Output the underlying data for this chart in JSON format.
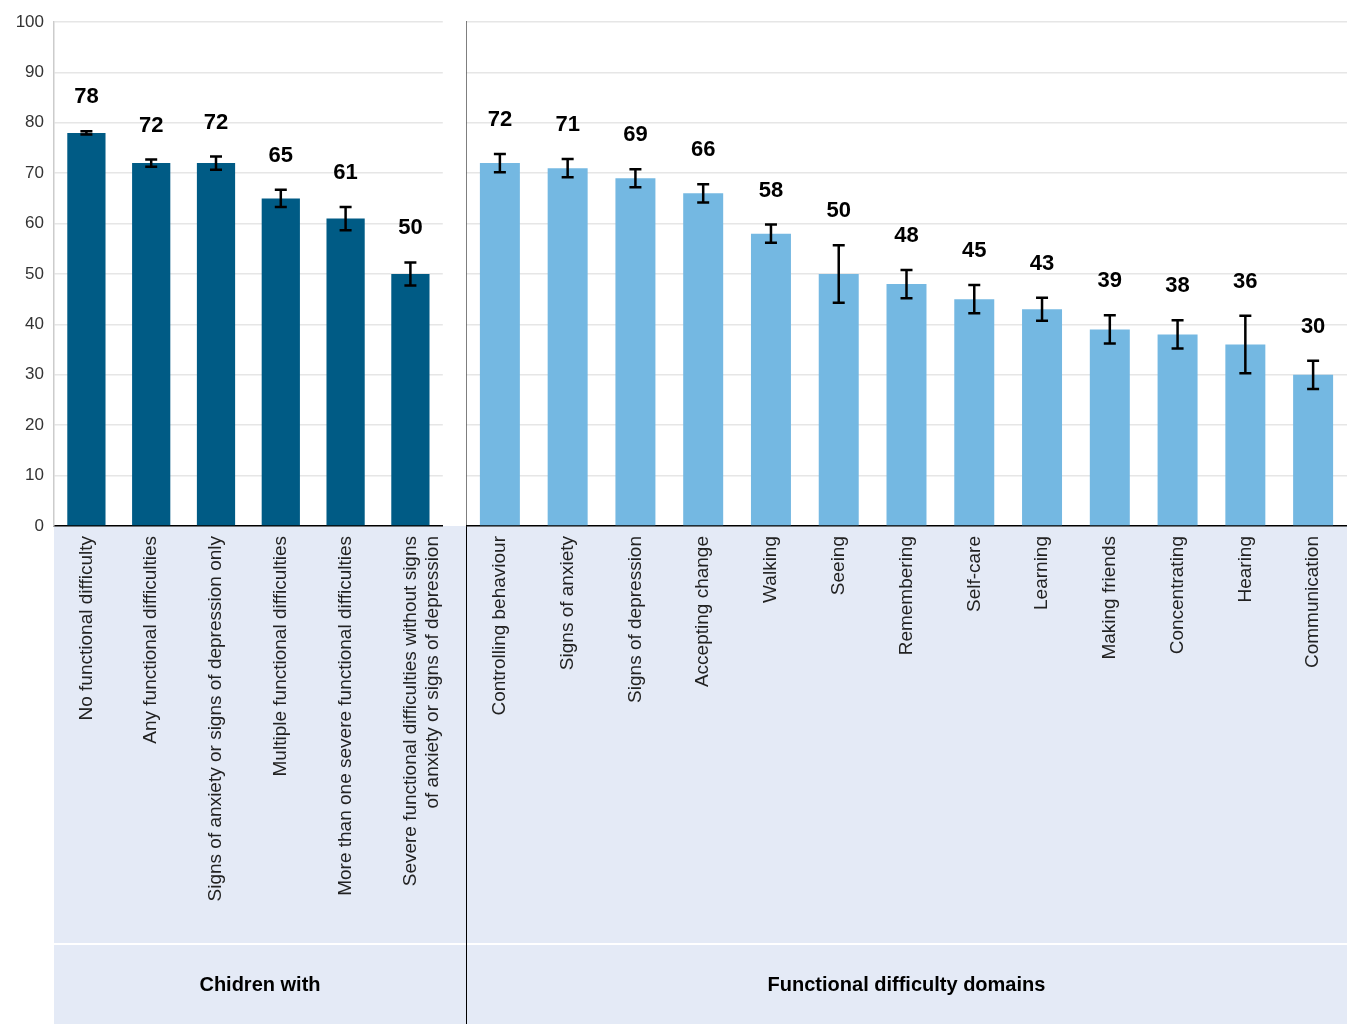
{
  "chart_data": [
    {
      "type": "bar",
      "xlabel": "Chidren with",
      "categories": [
        "No functional difficulty",
        "Any functional difficulties",
        "Signs of anxiety or signs of depression only",
        "Multiple functional difficulties",
        "More than one severe functional difficulties",
        "Severe functional difficulties without signs of anxiety or signs of depression"
      ],
      "values": [
        78,
        72,
        72,
        65,
        61,
        50
      ],
      "errors": [
        0.3,
        0.7,
        1.3,
        1.7,
        2.3,
        2.3
      ],
      "color": "#005b85",
      "data_labels": true,
      "grid": "y",
      "ylim": [
        0,
        100
      ],
      "yticks": [
        0,
        10,
        20,
        30,
        40,
        50,
        60,
        70,
        80,
        90,
        100
      ]
    },
    {
      "type": "bar",
      "xlabel": "Functional difficulty domains",
      "categories": [
        "Controlling behaviour",
        "Signs of anxiety",
        "Signs of depression",
        "Accepting change",
        "Walking",
        "Seeing",
        "Remembering",
        "Self-care",
        "Learning",
        "Making friends",
        "Concentrating",
        "Hearing",
        "Communication"
      ],
      "values": [
        72,
        71,
        69,
        66,
        58,
        50,
        48,
        45,
        43,
        39,
        38,
        36,
        30
      ],
      "errors": [
        1.8,
        1.8,
        1.8,
        1.8,
        1.8,
        5.7,
        2.8,
        2.8,
        2.3,
        2.8,
        2.8,
        5.7,
        2.8
      ],
      "color": "#74b8e2",
      "data_labels": true,
      "grid": "y",
      "ylim": [
        0,
        100
      ],
      "yticks": [
        0,
        10,
        20,
        30,
        40,
        50,
        60,
        70,
        80,
        90,
        100
      ],
      "tick_labels": "x"
    }
  ]
}
